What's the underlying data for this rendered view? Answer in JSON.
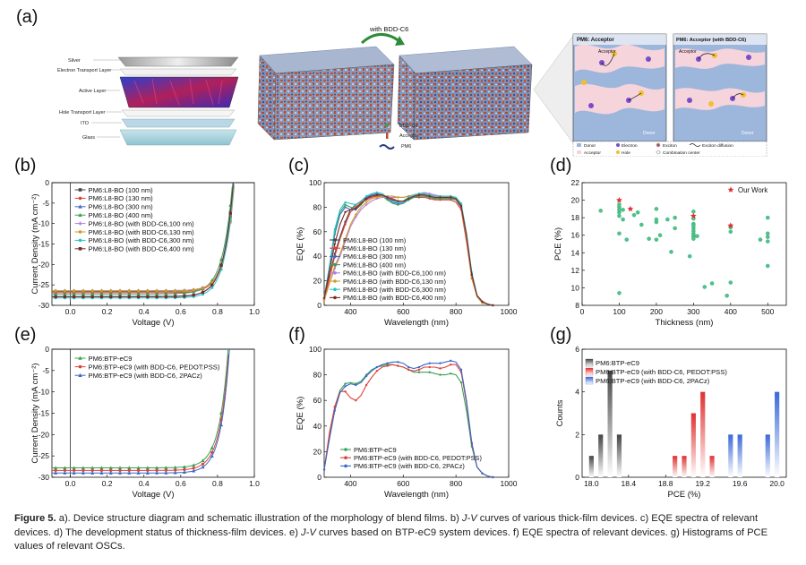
{
  "panel_labels": {
    "a": "(a)",
    "b": "(b)",
    "c": "(c)",
    "d": "(d)",
    "e": "(e)",
    "f": "(f)",
    "g": "(g)"
  },
  "diagram": {
    "layers": [
      "Silver",
      "Electron Transport Layer",
      "Active Layer",
      "Hole Transport Layer",
      "ITO",
      "Glass"
    ],
    "arrow_label": "with BDD-C6",
    "legend": [
      "BDD-C6",
      "Acceptor",
      "PM6"
    ],
    "morph_left_title": "PM6: Acceptor",
    "morph_right_title": "PM6: Acceptor (with BDD-C6)",
    "morph_left_labels": [
      "Acceptor",
      "Donor"
    ],
    "morph_right_labels": [
      "Acceptor",
      "Donor"
    ],
    "morph_legend": [
      "Donor",
      "Electron",
      "Exciton",
      "Acceptor",
      "Hole",
      "Exciton diffusion",
      "Combination center"
    ]
  },
  "caption": {
    "fig": "Figure 5.",
    "p1": " a). Device structure diagram and schematic illustration of the morphology of blend films. b) ",
    "jv1": "J-V",
    "p2": " curves of various thick-film devices. c) EQE spectra of relevant devices. d) The development status of thickness-film devices. e) ",
    "jv2": "J-V",
    "p3": " curves based on BTP-eC9 system devices. f) EQE spectra of relevant devices. g) Histograms of PCE values of relevant OSCs."
  },
  "chart_data": [
    {
      "id": "b",
      "type": "line",
      "xlabel": "Voltage (V)",
      "ylabel": "Current Density (mA cm⁻²)",
      "xlim": [
        -0.1,
        1.0
      ],
      "ylim": [
        -30,
        0
      ],
      "xticks": [
        "0.0",
        "0.2",
        "0.4",
        "0.6",
        "0.8",
        "1.0"
      ],
      "yticks": [
        "0",
        "-5",
        "-10",
        "-15",
        "-20",
        "-25",
        "-30"
      ],
      "series": [
        {
          "name": "PM6:L8-BO (100 nm)",
          "color": "#444444",
          "marker": "square",
          "jsc": -26.6,
          "voc": 0.888,
          "ff": 0.78
        },
        {
          "name": "PM6:L8-BO (130 nm)",
          "color": "#e0403a",
          "marker": "circle",
          "jsc": -26.9,
          "voc": 0.887,
          "ff": 0.77
        },
        {
          "name": "PM6:L8-BO (300 nm)",
          "color": "#3a68c8",
          "marker": "triangle",
          "jsc": -27.8,
          "voc": 0.884,
          "ff": 0.75
        },
        {
          "name": "PM6:L8-BO (400 nm)",
          "color": "#3aa055",
          "marker": "triangle",
          "jsc": -27.2,
          "voc": 0.882,
          "ff": 0.7
        },
        {
          "name": "PM6:L8-BO (with BDD-C6,100 nm)",
          "color": "#b47ee0",
          "marker": "diamond",
          "jsc": -26.4,
          "voc": 0.892,
          "ff": 0.79
        },
        {
          "name": "PM6:L8-BO (with BDD-C6,130 nm)",
          "color": "#d09a20",
          "marker": "circle",
          "jsc": -26.5,
          "voc": 0.891,
          "ff": 0.79
        },
        {
          "name": "PM6:L8-BO (with BDD-C6,300 nm)",
          "color": "#28c4c8",
          "marker": "circle",
          "jsc": -28.2,
          "voc": 0.889,
          "ff": 0.76
        },
        {
          "name": "PM6:L8-BO (with BDD-C6,400 nm)",
          "color": "#7a2a2a",
          "marker": "square",
          "jsc": -27.9,
          "voc": 0.886,
          "ff": 0.73
        }
      ]
    },
    {
      "id": "c",
      "type": "line",
      "xlabel": "Wavelength (nm)",
      "ylabel": "EQE (%)",
      "xlim": [
        300,
        1000
      ],
      "ylim": [
        0,
        100
      ],
      "xticks": [
        "400",
        "600",
        "800",
        "1000"
      ],
      "yticks": [
        "0",
        "20",
        "40",
        "60",
        "80",
        "100"
      ],
      "x": [
        300,
        320,
        340,
        360,
        380,
        400,
        420,
        440,
        460,
        480,
        500,
        520,
        540,
        560,
        580,
        600,
        620,
        640,
        660,
        680,
        700,
        720,
        740,
        760,
        780,
        800,
        820,
        840,
        860,
        880,
        900,
        920,
        940
      ],
      "series": [
        {
          "name": "PM6:L8-BO (100 nm)",
          "color": "#444444",
          "values": [
            5,
            24,
            42,
            56,
            68,
            78,
            82,
            85,
            88,
            89,
            90,
            90,
            88,
            86,
            85,
            85,
            86,
            88,
            89,
            89,
            88,
            87,
            87,
            87,
            87,
            86,
            80,
            55,
            25,
            8,
            3,
            1,
            0
          ]
        },
        {
          "name": "PM6:L8-BO (130 nm)",
          "color": "#e0403a",
          "values": [
            5,
            22,
            40,
            54,
            66,
            76,
            80,
            84,
            86,
            88,
            89,
            89,
            88,
            87,
            85,
            85,
            86,
            88,
            88,
            88,
            87,
            86,
            86,
            86,
            86,
            84,
            78,
            52,
            22,
            7,
            2,
            1,
            0
          ]
        },
        {
          "name": "PM6:L8-BO (300 nm)",
          "color": "#3a68c8",
          "values": [
            6,
            30,
            58,
            74,
            80,
            78,
            78,
            82,
            88,
            90,
            91,
            90,
            87,
            84,
            83,
            84,
            87,
            89,
            90,
            90,
            89,
            88,
            88,
            88,
            88,
            87,
            82,
            58,
            26,
            8,
            3,
            1,
            0
          ]
        },
        {
          "name": "PM6:L8-BO (400 nm)",
          "color": "#3aa055",
          "values": [
            6,
            32,
            60,
            76,
            82,
            80,
            79,
            82,
            87,
            89,
            90,
            89,
            86,
            83,
            82,
            83,
            86,
            88,
            89,
            89,
            88,
            87,
            87,
            87,
            87,
            86,
            81,
            56,
            24,
            7,
            2,
            1,
            0
          ]
        },
        {
          "name": "PM6:L8-BO (with BDD-C6,100 nm)",
          "color": "#b47ee0",
          "values": [
            4,
            18,
            30,
            40,
            52,
            64,
            72,
            78,
            82,
            85,
            87,
            88,
            88,
            88,
            88,
            88,
            89,
            90,
            91,
            92,
            91,
            90,
            89,
            89,
            89,
            88,
            82,
            56,
            24,
            7,
            2,
            1,
            0
          ]
        },
        {
          "name": "PM6:L8-BO (with BDD-C6,130 nm)",
          "color": "#d09a20",
          "values": [
            4,
            18,
            32,
            42,
            54,
            66,
            74,
            80,
            84,
            87,
            88,
            89,
            89,
            89,
            88,
            88,
            89,
            90,
            91,
            91,
            90,
            89,
            89,
            89,
            89,
            87,
            81,
            55,
            23,
            7,
            2,
            1,
            0
          ]
        },
        {
          "name": "PM6:L8-BO (with BDD-C6,300 nm)",
          "color": "#28c4c8",
          "values": [
            6,
            32,
            62,
            78,
            84,
            83,
            82,
            85,
            89,
            91,
            92,
            91,
            88,
            85,
            84,
            85,
            88,
            90,
            91,
            91,
            90,
            89,
            89,
            89,
            89,
            88,
            83,
            59,
            27,
            8,
            3,
            1,
            0
          ]
        },
        {
          "name": "PM6:L8-BO (with BDD-C6,400 nm)",
          "color": "#7a2a2a",
          "values": [
            6,
            28,
            50,
            66,
            76,
            78,
            79,
            83,
            87,
            89,
            90,
            90,
            88,
            86,
            85,
            85,
            87,
            89,
            90,
            90,
            89,
            88,
            88,
            88,
            88,
            87,
            81,
            57,
            25,
            8,
            3,
            1,
            0
          ]
        }
      ]
    },
    {
      "id": "d",
      "type": "scatter",
      "xlabel": "Thickness (nm)",
      "ylabel": "PCE (%)",
      "xlim": [
        0,
        550
      ],
      "ylim": [
        8,
        22
      ],
      "xticks": [
        "0",
        "100",
        "200",
        "300",
        "400",
        "500"
      ],
      "yticks": [
        "8",
        "10",
        "12",
        "14",
        "16",
        "18",
        "20",
        "22"
      ],
      "legend": "Our Work",
      "points": [
        [
          50,
          18.8
        ],
        [
          100,
          19.2
        ],
        [
          100,
          18.6
        ],
        [
          100,
          18.9
        ],
        [
          100,
          19.5
        ],
        [
          100,
          18.2
        ],
        [
          100,
          16.2
        ],
        [
          100,
          9.4
        ],
        [
          110,
          18.9
        ],
        [
          110,
          17.8
        ],
        [
          120,
          15.5
        ],
        [
          140,
          18.3
        ],
        [
          150,
          18.6
        ],
        [
          160,
          17.2
        ],
        [
          180,
          15.6
        ],
        [
          200,
          17.5
        ],
        [
          200,
          17.8
        ],
        [
          200,
          19.0
        ],
        [
          200,
          15.5
        ],
        [
          210,
          16.0
        ],
        [
          230,
          17.8
        ],
        [
          240,
          14.1
        ],
        [
          250,
          16.8
        ],
        [
          250,
          18.0
        ],
        [
          290,
          13.6
        ],
        [
          300,
          18.7
        ],
        [
          300,
          17.9
        ],
        [
          300,
          17.3
        ],
        [
          300,
          17.1
        ],
        [
          300,
          16.8
        ],
        [
          300,
          16.5
        ],
        [
          300,
          16.2
        ],
        [
          300,
          16.0
        ],
        [
          300,
          15.8
        ],
        [
          300,
          15.6
        ],
        [
          310,
          15.9
        ],
        [
          330,
          10.1
        ],
        [
          350,
          10.5
        ],
        [
          390,
          9.1
        ],
        [
          400,
          17.0
        ],
        [
          400,
          16.9
        ],
        [
          400,
          16.4
        ],
        [
          400,
          10.6
        ],
        [
          480,
          15.5
        ],
        [
          500,
          18.0
        ],
        [
          500,
          16.2
        ],
        [
          500,
          15.8
        ],
        [
          500,
          15.3
        ],
        [
          500,
          12.5
        ]
      ],
      "our_work": [
        [
          100,
          20.0
        ],
        [
          130,
          19.0
        ],
        [
          300,
          18.2
        ],
        [
          400,
          17.1
        ]
      ]
    },
    {
      "id": "e",
      "type": "line",
      "xlabel": "Voltage (V)",
      "ylabel": "Current Density (mA cm⁻²)",
      "xlim": [
        -0.1,
        1.0
      ],
      "ylim": [
        -30,
        0
      ],
      "xticks": [
        "0.0",
        "0.2",
        "0.4",
        "0.6",
        "0.8",
        "1.0"
      ],
      "yticks": [
        "0",
        "-5",
        "-10",
        "-15",
        "-20",
        "-25",
        "-30"
      ],
      "series": [
        {
          "name": "PM6:BTP-eC9",
          "color": "#3aa055",
          "marker": "triangle",
          "jsc": -27.8,
          "voc": 0.858,
          "ff": 0.76
        },
        {
          "name": "PM6:BTP-eC9 (with BDD-C6, PEDOT:PSS)",
          "color": "#e0403a",
          "marker": "circle",
          "jsc": -28.4,
          "voc": 0.862,
          "ff": 0.78
        },
        {
          "name": "PM6:BTP-eC9 (with BDD-C6, 2PACz)",
          "color": "#3a68c8",
          "marker": "triangle",
          "jsc": -29.0,
          "voc": 0.865,
          "ff": 0.79
        }
      ]
    },
    {
      "id": "f",
      "type": "line",
      "xlabel": "Wavelength (nm)",
      "ylabel": "EQE (%)",
      "xlim": [
        300,
        1000
      ],
      "ylim": [
        0,
        100
      ],
      "xticks": [
        "400",
        "600",
        "800",
        "1000"
      ],
      "yticks": [
        "0",
        "20",
        "40",
        "60",
        "80",
        "100"
      ],
      "x": [
        300,
        320,
        340,
        360,
        380,
        400,
        420,
        440,
        460,
        480,
        500,
        520,
        540,
        560,
        580,
        600,
        620,
        640,
        660,
        680,
        700,
        720,
        740,
        760,
        780,
        800,
        820,
        840,
        860,
        880,
        900,
        920,
        940
      ],
      "series": [
        {
          "name": "PM6:BTP-eC9",
          "color": "#3aa055",
          "values": [
            6,
            32,
            55,
            68,
            73,
            74,
            73,
            75,
            80,
            84,
            86,
            87,
            88,
            88,
            87,
            86,
            84,
            82,
            82,
            82,
            82,
            81,
            80,
            80,
            81,
            80,
            74,
            52,
            24,
            8,
            3,
            1,
            0
          ]
        },
        {
          "name": "PM6:BTP-eC9 (with BDD-C6, PEDOT:PSS)",
          "color": "#e0403a",
          "values": [
            6,
            35,
            55,
            67,
            67,
            62,
            60,
            64,
            72,
            78,
            83,
            86,
            87,
            88,
            87,
            86,
            84,
            83,
            84,
            86,
            86,
            86,
            85,
            86,
            88,
            88,
            82,
            58,
            26,
            8,
            3,
            1,
            0
          ]
        },
        {
          "name": "PM6:BTP-eC9 (with BDD-C6, 2PACz)",
          "color": "#3a68c8",
          "values": [
            6,
            30,
            52,
            66,
            71,
            73,
            72,
            74,
            79,
            83,
            86,
            88,
            89,
            90,
            90,
            89,
            86,
            85,
            86,
            88,
            89,
            89,
            89,
            90,
            91,
            90,
            84,
            60,
            27,
            8,
            3,
            1,
            0
          ]
        }
      ]
    },
    {
      "id": "g",
      "type": "bar",
      "xlabel": "PCE (%)",
      "ylabel": "Counts",
      "xlim": [
        17.9,
        20.1
      ],
      "ylim": [
        0,
        6
      ],
      "xticks": [
        "18.0",
        "18.4",
        "18.8",
        "19.2",
        "19.6",
        "20.0"
      ],
      "yticks": [
        "0",
        "2",
        "4",
        "6"
      ],
      "series": [
        {
          "name": "PM6:BTP-eC9",
          "color": "#444444",
          "bins": [
            [
              18.0,
              1
            ],
            [
              18.1,
              2
            ],
            [
              18.2,
              5
            ],
            [
              18.3,
              2
            ]
          ]
        },
        {
          "name": "PM6:BTP-eC9 (with BDD-C6, PEDOT:PSS)",
          "color": "#e03030",
          "bins": [
            [
              18.9,
              1
            ],
            [
              19.0,
              1
            ],
            [
              19.1,
              3
            ],
            [
              19.2,
              4
            ],
            [
              19.3,
              1
            ]
          ]
        },
        {
          "name": "PM6:BTP-eC9 (with BDD-C6, 2PACz)",
          "color": "#3a68d8",
          "bins": [
            [
              19.5,
              2
            ],
            [
              19.6,
              2
            ],
            [
              19.9,
              2
            ],
            [
              20.0,
              4
            ]
          ]
        }
      ]
    }
  ]
}
